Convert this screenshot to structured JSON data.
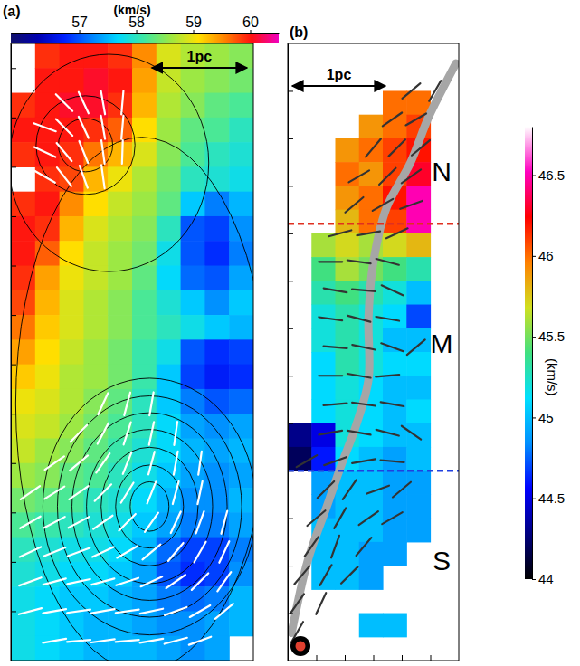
{
  "chart_data": [
    {
      "type": "heatmap",
      "title": "(a)",
      "tick_labels": false,
      "xlim": [
        0,
        2.5
      ],
      "ylim": [
        0,
        6.25
      ],
      "yticks": [
        0.5,
        1,
        1.5,
        2,
        2.5,
        3,
        3.5,
        4,
        4.5,
        5,
        5.5,
        6
      ],
      "x": [
        0.125,
        0.375,
        0.625,
        0.875,
        1.125,
        1.375,
        1.625,
        1.875,
        2.125,
        2.375
      ],
      "y": [
        6.125,
        5.875,
        5.625,
        5.375,
        5.125,
        4.875,
        4.625,
        4.375,
        4.125,
        3.875,
        3.625,
        3.375,
        3.125,
        2.875,
        2.625,
        2.375,
        2.125,
        1.875,
        1.625,
        1.375,
        1.125,
        0.875,
        0.625,
        0.375,
        0.125
      ],
      "values": [
        [
          null,
          59.9,
          60.0,
          60.0,
          59.9,
          59.5,
          58.9,
          58.7,
          58.6,
          58.5
        ],
        [
          null,
          60.0,
          60.0,
          60.1,
          60.0,
          59.4,
          58.8,
          58.6,
          58.5,
          58.4
        ],
        [
          59.9,
          60.0,
          60.1,
          60.1,
          59.9,
          59.3,
          58.7,
          58.5,
          58.3,
          58.2
        ],
        [
          60.0,
          60.0,
          60.0,
          59.9,
          59.7,
          59.1,
          58.6,
          58.3,
          58.2,
          58.0
        ],
        [
          59.9,
          60.0,
          59.9,
          59.6,
          59.3,
          58.9,
          58.5,
          58.2,
          58.0,
          57.9
        ],
        [
          null,
          59.9,
          59.8,
          59.3,
          59.0,
          58.7,
          58.4,
          58.0,
          57.9,
          57.8
        ],
        [
          59.9,
          60.0,
          59.5,
          59.1,
          58.8,
          58.6,
          58.3,
          57.6,
          57.2,
          57.5
        ],
        [
          60.0,
          59.9,
          59.3,
          58.9,
          58.7,
          58.5,
          58.0,
          57.0,
          56.9,
          57.3
        ],
        [
          60.0,
          59.7,
          59.1,
          58.8,
          58.6,
          58.4,
          57.8,
          57.0,
          56.8,
          57.2
        ],
        [
          59.9,
          59.4,
          59.0,
          58.8,
          58.6,
          58.3,
          57.7,
          57.1,
          57.0,
          57.4
        ],
        [
          59.8,
          59.3,
          58.9,
          58.7,
          58.5,
          58.2,
          57.9,
          57.6,
          57.3,
          57.6
        ],
        [
          59.6,
          59.2,
          58.9,
          58.7,
          58.5,
          58.2,
          58.0,
          57.8,
          57.6,
          57.5
        ],
        [
          59.4,
          59.1,
          58.8,
          58.6,
          58.4,
          58.1,
          57.8,
          57.0,
          56.8,
          56.9
        ],
        [
          59.2,
          59.0,
          58.7,
          58.6,
          58.4,
          58.1,
          57.6,
          56.9,
          56.7,
          56.8
        ],
        [
          59.0,
          58.9,
          58.7,
          58.5,
          58.3,
          58.0,
          57.6,
          57.2,
          57.0,
          57.1
        ],
        [
          58.9,
          58.8,
          58.6,
          58.4,
          58.2,
          58.0,
          57.7,
          57.4,
          57.3,
          57.4
        ],
        [
          58.8,
          58.6,
          58.5,
          58.3,
          58.1,
          57.9,
          57.7,
          57.5,
          57.4,
          57.5
        ],
        [
          58.6,
          58.5,
          58.3,
          58.2,
          58.0,
          57.8,
          57.6,
          57.4,
          57.3,
          57.4
        ],
        [
          58.4,
          58.3,
          58.2,
          58.0,
          57.9,
          57.7,
          57.5,
          57.3,
          57.3,
          57.5
        ],
        [
          58.2,
          58.1,
          58.0,
          57.9,
          57.8,
          57.6,
          57.4,
          57.2,
          57.2,
          57.4
        ],
        [
          58.0,
          57.9,
          57.8,
          57.8,
          57.7,
          57.5,
          57.1,
          56.9,
          56.9,
          57.2
        ],
        [
          57.9,
          57.8,
          57.7,
          57.7,
          57.6,
          57.4,
          57.0,
          56.8,
          56.9,
          57.3
        ],
        [
          57.8,
          57.7,
          57.6,
          57.6,
          57.5,
          57.4,
          57.2,
          57.1,
          57.2,
          57.5
        ],
        [
          57.8,
          57.7,
          57.6,
          57.5,
          57.5,
          57.4,
          57.3,
          57.3,
          57.4,
          57.5
        ],
        [
          57.8,
          57.7,
          57.6,
          57.5,
          57.5,
          57.5,
          57.4,
          57.3,
          57.4,
          null
        ]
      ],
      "colorbar": {
        "label": "(km/s)",
        "range": [
          55.8,
          60.5
        ],
        "ticks": [
          57,
          58,
          59,
          60
        ],
        "colors": [
          "#10106a",
          "#0000b0",
          "#0020ff",
          "#0080ff",
          "#00d8ff",
          "#40e8a0",
          "#a0e840",
          "#ffe000",
          "#ff8000",
          "#ff1010",
          "#f000c0"
        ]
      },
      "contours": {
        "cx": [
          0.77,
          0.77,
          1.01,
          1.43,
          1.43,
          1.43,
          1.43,
          1.43,
          1.43,
          1.43,
          1.35
        ],
        "cy": [
          5.22,
          5.22,
          5.04,
          1.56,
          1.56,
          1.56,
          1.56,
          1.56,
          1.56,
          1.56,
          2.6
        ],
        "rx": [
          0.28,
          0.51,
          1.03,
          0.2,
          0.35,
          0.5,
          0.65,
          0.8,
          0.95,
          1.1,
          1.3
        ],
        "ry": [
          0.27,
          0.5,
          1.1,
          0.25,
          0.42,
          0.6,
          0.78,
          0.95,
          1.12,
          1.3,
          2.7
        ]
      },
      "vectors": {
        "color": "#ffffff",
        "x": [
          0.55,
          0.75,
          0.95,
          1.15,
          0.35,
          0.55,
          0.75,
          0.95,
          1.15,
          0.35,
          0.55,
          0.75,
          0.95,
          1.15,
          0.35,
          0.55,
          0.75,
          0.95,
          0.45,
          0.7,
          0.95,
          1.2,
          1.45,
          1.7,
          1.95,
          0.2,
          0.45,
          0.7,
          0.95,
          1.2,
          1.45,
          1.7,
          1.95,
          2.2,
          0.2,
          0.45,
          0.7,
          0.95,
          1.2,
          1.45,
          1.7,
          1.95,
          2.2,
          0.2,
          0.45,
          0.7,
          0.95,
          1.2,
          1.45,
          1.7,
          1.95,
          2.2,
          0.2,
          0.45,
          0.7,
          0.95,
          1.2,
          1.45,
          1.7,
          1.95,
          2.2,
          0.2,
          0.45,
          0.7,
          0.95,
          1.2,
          1.45,
          1.7,
          1.95,
          0.45,
          0.7,
          0.95,
          1.2,
          1.45,
          1.7,
          1.95,
          0.7,
          0.95,
          1.2,
          1.45,
          1.7,
          0.95,
          1.2,
          1.45
        ],
        "y": [
          5.65,
          5.65,
          5.65,
          5.65,
          5.4,
          5.4,
          5.4,
          5.4,
          5.4,
          5.15,
          5.15,
          5.15,
          5.15,
          5.15,
          4.9,
          4.9,
          4.9,
          4.9,
          0.2,
          0.2,
          0.2,
          0.2,
          0.2,
          0.2,
          0.2,
          0.5,
          0.5,
          0.5,
          0.5,
          0.5,
          0.5,
          0.5,
          0.5,
          0.5,
          0.8,
          0.8,
          0.8,
          0.8,
          0.8,
          0.8,
          0.8,
          0.8,
          0.8,
          1.1,
          1.1,
          1.1,
          1.1,
          1.1,
          1.1,
          1.1,
          1.1,
          1.1,
          1.4,
          1.4,
          1.4,
          1.4,
          1.4,
          1.4,
          1.4,
          1.4,
          1.4,
          1.7,
          1.7,
          1.7,
          1.7,
          1.7,
          1.7,
          1.7,
          1.7,
          2.0,
          2.0,
          2.0,
          2.0,
          2.0,
          2.0,
          2.0,
          2.3,
          2.3,
          2.3,
          2.3,
          2.3,
          2.6,
          2.6,
          2.6
        ],
        "angle": [
          135,
          115,
          100,
          85,
          160,
          135,
          115,
          100,
          85,
          155,
          130,
          112,
          98,
          88,
          150,
          128,
          110,
          98,
          10,
          5,
          8,
          5,
          10,
          15,
          20,
          15,
          10,
          8,
          10,
          8,
          12,
          20,
          30,
          40,
          20,
          15,
          12,
          15,
          18,
          25,
          35,
          45,
          55,
          25,
          22,
          20,
          25,
          30,
          40,
          50,
          60,
          65,
          30,
          28,
          28,
          35,
          45,
          55,
          65,
          70,
          75,
          35,
          32,
          35,
          45,
          58,
          68,
          75,
          78,
          35,
          40,
          55,
          68,
          75,
          80,
          82,
          45,
          62,
          72,
          78,
          82,
          65,
          75,
          80
        ]
      },
      "scale_bar": {
        "label": "1pc",
        "length": 1
      }
    },
    {
      "type": "heatmap",
      "title": "(b)",
      "tick_labels": false,
      "xlim": [
        0,
        1.8
      ],
      "ylim": [
        0,
        6.5
      ],
      "xticks": [
        0.3,
        0.6,
        0.9,
        1.2,
        1.5
      ],
      "yticks": [
        0.5,
        1,
        1.5,
        2,
        2.5,
        3,
        3.5,
        4,
        4.5,
        5,
        5.5,
        6
      ],
      "x": [
        0.125,
        0.375,
        0.625,
        0.875,
        1.125,
        1.375
      ],
      "y": [
        6.375,
        6.125,
        5.875,
        5.625,
        5.375,
        5.125,
        4.875,
        4.625,
        4.375,
        4.125,
        3.875,
        3.625,
        3.375,
        3.125,
        2.875,
        2.625,
        2.375,
        2.125,
        1.875,
        1.625,
        1.375,
        1.125,
        0.875,
        0.625,
        0.375,
        0.125
      ],
      "values": [
        [
          null,
          null,
          null,
          null,
          null,
          null
        ],
        [
          null,
          null,
          null,
          null,
          null,
          null
        ],
        [
          null,
          null,
          null,
          null,
          46.0,
          46.0
        ],
        [
          null,
          null,
          null,
          45.9,
          46.0,
          46.1
        ],
        [
          null,
          null,
          45.9,
          46.0,
          46.1,
          46.2
        ],
        [
          null,
          null,
          46.0,
          45.9,
          46.1,
          46.3
        ],
        [
          null,
          null,
          45.9,
          46.0,
          46.2,
          46.5
        ],
        [
          null,
          null,
          45.8,
          46.0,
          46.1,
          46.5
        ],
        [
          null,
          45.6,
          45.7,
          45.6,
          45.7,
          45.8
        ],
        [
          null,
          45.4,
          45.6,
          45.5,
          45.4,
          45.3
        ],
        [
          null,
          45.3,
          45.4,
          45.3,
          45.2,
          45.0
        ],
        [
          null,
          45.2,
          45.3,
          45.2,
          45.1,
          44.7
        ],
        [
          null,
          45.2,
          45.3,
          45.2,
          45.0,
          45.0
        ],
        [
          null,
          45.1,
          45.3,
          45.2,
          45.1,
          45.1
        ],
        [
          null,
          45.1,
          45.2,
          45.1,
          45.0,
          45.0
        ],
        [
          null,
          45.1,
          45.2,
          45.1,
          45.0,
          45.1
        ],
        [
          44.3,
          44.5,
          45.2,
          45.1,
          45.0,
          45.0
        ],
        [
          44.2,
          44.6,
          45.1,
          45.0,
          44.9,
          45.0
        ],
        [
          null,
          44.9,
          45.0,
          45.0,
          44.9,
          44.9
        ],
        [
          null,
          44.9,
          45.0,
          45.0,
          44.9,
          44.9
        ],
        [
          null,
          45.0,
          45.0,
          45.0,
          44.9,
          44.9
        ],
        [
          null,
          45.0,
          45.0,
          44.9,
          44.9,
          null
        ],
        [
          null,
          45.0,
          45.0,
          44.9,
          null,
          null
        ],
        [
          null,
          null,
          null,
          null,
          null,
          null
        ],
        [
          null,
          null,
          null,
          45.0,
          45.0,
          null
        ],
        [
          null,
          null,
          null,
          null,
          null,
          null
        ]
      ],
      "colorbar": {
        "label": "(km/s)",
        "range": [
          44,
          46.8
        ],
        "ticks": [
          44,
          44.5,
          45,
          45.5,
          46,
          46.5
        ],
        "colors": [
          "#000000",
          "#000080",
          "#0000ff",
          "#0090ff",
          "#00e0ff",
          "#40e080",
          "#d0e020",
          "#ff8000",
          "#ff0000",
          "#ff00c0",
          "#ffffff"
        ]
      },
      "spine": {
        "color": "#a6a6a6",
        "x": [
          0.04,
          0.21,
          0.41,
          0.56,
          0.72,
          0.85,
          0.85,
          0.9,
          1.04,
          1.29,
          1.48,
          1.67,
          1.77
        ],
        "y": [
          0.29,
          1.05,
          1.62,
          2.05,
          2.48,
          2.96,
          3.62,
          4.19,
          4.77,
          5.24,
          5.72,
          6.1,
          6.29
        ]
      },
      "boundaries": {
        "y": [
          4.6,
          2.0
        ],
        "colors": [
          "#e03020",
          "#2040e0"
        ],
        "line_style": "dashed"
      },
      "labels": {
        "text": [
          "N",
          "M",
          "S"
        ],
        "x": [
          1.62,
          1.62,
          1.62
        ],
        "y": [
          5.15,
          3.34,
          1.05
        ]
      },
      "vectors": {
        "color": "#333333",
        "x": [
          0.1,
          0.1,
          0.35,
          0.15,
          0.4,
          0.65,
          0.25,
          0.5,
          0.8,
          0.3,
          0.55,
          0.85,
          1.1,
          0.4,
          0.65,
          0.95,
          1.2,
          0.2,
          0.5,
          0.8,
          1.1,
          0.45,
          0.75,
          1.05,
          1.3,
          0.5,
          0.8,
          1.1,
          0.45,
          0.75,
          1.05,
          0.5,
          0.8,
          1.1,
          1.35,
          0.45,
          0.75,
          1.05,
          0.5,
          0.8,
          1.1,
          0.45,
          0.75,
          1.05,
          0.55,
          0.85,
          1.15,
          0.7,
          1.0,
          1.3,
          0.75,
          1.05,
          1.3,
          0.9,
          1.15,
          1.4,
          1.1,
          1.35,
          1.3,
          1.55
        ],
        "y": [
          0.3,
          0.6,
          0.6,
          0.9,
          0.9,
          0.9,
          1.2,
          1.2,
          1.2,
          1.5,
          1.5,
          1.5,
          1.5,
          1.8,
          1.8,
          1.8,
          1.8,
          2.1,
          2.1,
          2.1,
          2.1,
          2.4,
          2.4,
          2.4,
          2.4,
          2.7,
          2.7,
          2.7,
          3.0,
          3.0,
          3.0,
          3.3,
          3.3,
          3.3,
          3.3,
          3.6,
          3.6,
          3.6,
          3.9,
          3.9,
          3.9,
          4.2,
          4.2,
          4.2,
          4.5,
          4.5,
          4.5,
          4.8,
          4.8,
          4.8,
          5.1,
          5.1,
          5.1,
          5.4,
          5.4,
          5.4,
          5.7,
          5.7,
          6.0,
          6.0
        ],
        "angle": [
          60,
          55,
          65,
          50,
          60,
          45,
          55,
          70,
          50,
          40,
          60,
          35,
          30,
          45,
          55,
          20,
          40,
          30,
          20,
          10,
          -5,
          10,
          -10,
          -15,
          -35,
          5,
          -8,
          -10,
          0,
          -10,
          5,
          -5,
          -12,
          -20,
          40,
          -8,
          -15,
          -10,
          -10,
          -5,
          -25,
          0,
          -8,
          -15,
          15,
          10,
          25,
          40,
          30,
          20,
          30,
          45,
          35,
          50,
          45,
          40,
          35,
          30,
          40,
          60
        ]
      },
      "scale_bar": {
        "label": "1pc",
        "length": 1
      }
    }
  ]
}
